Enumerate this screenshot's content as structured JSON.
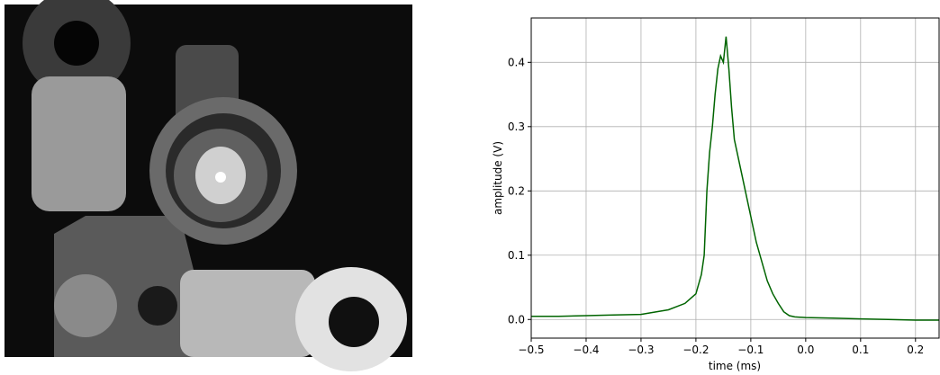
{
  "chart_data": {
    "type": "line",
    "xlabel": "time (ms)",
    "ylabel": "amplitude (V)",
    "series": [
      {
        "color": "#006400",
        "x": [
          -0.5,
          -0.45,
          -0.4,
          -0.35,
          -0.3,
          -0.25,
          -0.22,
          -0.2,
          -0.19,
          -0.185,
          -0.18,
          -0.175,
          -0.17,
          -0.165,
          -0.16,
          -0.155,
          -0.15,
          -0.145,
          -0.14,
          -0.135,
          -0.13,
          -0.12,
          -0.11,
          -0.1,
          -0.09,
          -0.08,
          -0.07,
          -0.06,
          -0.05,
          -0.04,
          -0.03,
          -0.02,
          0.0,
          0.05,
          0.1,
          0.15,
          0.2,
          0.243
        ],
        "values": [
          0.005,
          0.005,
          0.006,
          0.007,
          0.008,
          0.015,
          0.025,
          0.04,
          0.07,
          0.1,
          0.2,
          0.26,
          0.3,
          0.35,
          0.39,
          0.41,
          0.4,
          0.44,
          0.39,
          0.33,
          0.28,
          0.24,
          0.2,
          0.16,
          0.12,
          0.09,
          0.06,
          0.04,
          0.025,
          0.012,
          0.006,
          0.004,
          0.003,
          0.002,
          0.001,
          0.0,
          -0.001,
          -0.001
        ]
      }
    ],
    "xlim": [
      -0.5,
      0.243
    ],
    "ylim": [
      -0.029,
      0.469
    ],
    "xticks": [
      {
        "value": -0.5,
        "label": "−0.5"
      },
      {
        "value": -0.4,
        "label": "−0.4"
      },
      {
        "value": -0.3,
        "label": "−0.3"
      },
      {
        "value": -0.2,
        "label": "−0.2"
      },
      {
        "value": -0.1,
        "label": "−0.1"
      },
      {
        "value": 0.0,
        "label": "0.0"
      },
      0.1,
      0.2
    ],
    "yticks": [
      {
        "value": 0.0,
        "label": "0.0"
      },
      0.1,
      0.2,
      0.3,
      0.4
    ],
    "grid": true
  }
}
